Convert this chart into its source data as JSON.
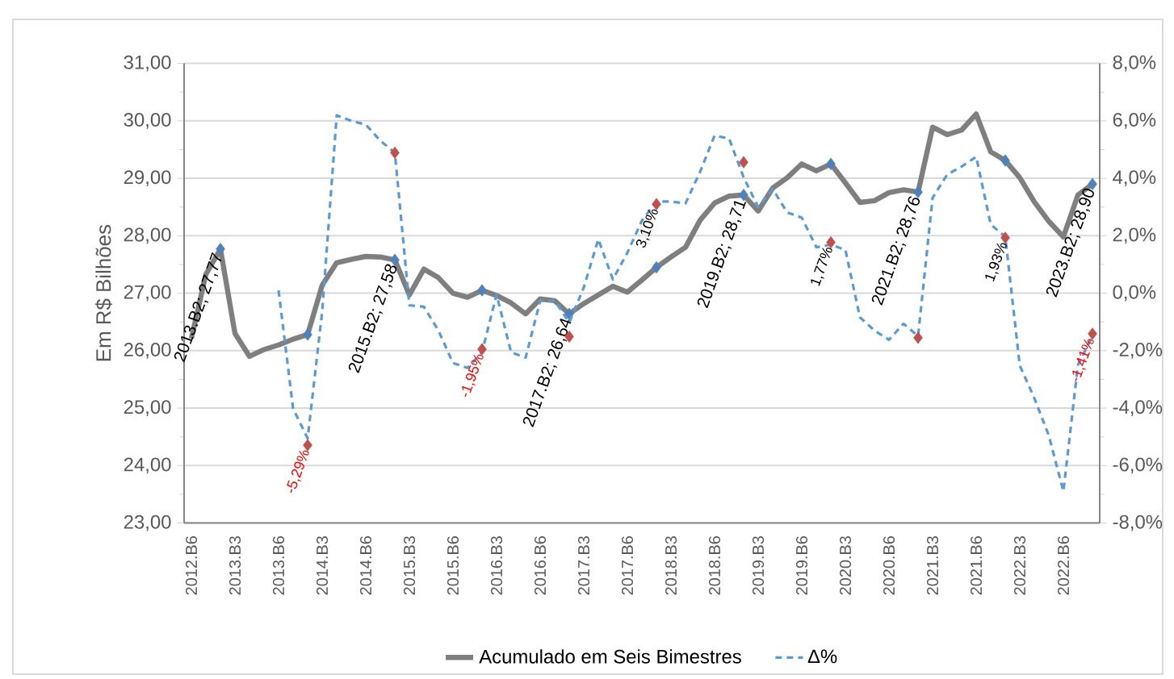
{
  "chart_data": {
    "type": "line",
    "ylabel": "Em R$ Bilhões",
    "categories": [
      "2012.B6",
      null,
      null,
      "2013.B3",
      null,
      null,
      "2013.B6",
      null,
      null,
      "2014.B3",
      null,
      null,
      "2014.B6",
      null,
      null,
      "2015.B3",
      null,
      null,
      "2015.B6",
      null,
      null,
      "2016.B3",
      null,
      null,
      "2016.B6",
      null,
      null,
      "2017.B3",
      null,
      null,
      "2017.B6",
      null,
      null,
      "2018.B3",
      null,
      null,
      "2018.B6",
      null,
      null,
      "2019.B3",
      null,
      null,
      "2019.B6",
      null,
      null,
      "2020.B3",
      null,
      null,
      "2020.B6",
      null,
      null,
      "2021.B3",
      null,
      null,
      "2021.B6",
      null,
      null,
      "2022.B3",
      null,
      null,
      "2022.B6",
      null,
      null
    ],
    "series": [
      {
        "name": "Acumulado em Seis Bimestres",
        "color": "#7f7f7f",
        "values": [
          26.21,
          27.33,
          27.77,
          26.3,
          25.9,
          26.02,
          26.1,
          26.2,
          26.28,
          27.14,
          27.53,
          27.59,
          27.64,
          27.63,
          27.58,
          26.97,
          27.42,
          27.27,
          27.0,
          26.93,
          27.05,
          26.96,
          26.83,
          26.64,
          26.9,
          26.87,
          26.64,
          26.82,
          26.97,
          27.12,
          27.02,
          27.23,
          27.45,
          27.63,
          27.8,
          28.27,
          28.57,
          28.69,
          28.71,
          28.43,
          28.83,
          29.01,
          29.25,
          29.13,
          29.25,
          28.92,
          28.58,
          28.61,
          28.75,
          28.8,
          28.76,
          29.89,
          29.76,
          29.84,
          30.12,
          29.46,
          29.31,
          29.01,
          28.59,
          28.25,
          27.98,
          28.71,
          28.9
        ]
      },
      {
        "name": "Δ%",
        "color": "#5b9bd5",
        "axis": "y2",
        "line_style": "dashed",
        "values": [
          null,
          null,
          null,
          null,
          null,
          null,
          0.1,
          -4.02,
          -5.05,
          -0.65,
          6.19,
          6.0,
          5.87,
          5.31,
          4.89,
          -0.42,
          -0.47,
          -1.3,
          -2.43,
          -2.6,
          -2.05,
          -0.05,
          -2.06,
          -2.24,
          -0.27,
          -0.25,
          -1.02,
          0.2,
          1.88,
          0.48,
          1.41,
          2.53,
          3.19,
          3.19,
          3.13,
          4.22,
          5.49,
          5.38,
          4.03,
          3.0,
          3.62,
          2.81,
          2.63,
          1.6,
          1.69,
          1.51,
          -0.84,
          -1.3,
          -1.62,
          -1.06,
          -1.49,
          3.32,
          4.13,
          4.41,
          4.75,
          2.39,
          1.97,
          -2.52,
          -3.65,
          -4.96,
          -6.9,
          -2.5,
          -1.49
        ]
      },
      {
        "type": "scatter",
        "color": "#4f81bd",
        "marker": "diamond",
        "values": [
          null,
          null,
          27.77,
          null,
          null,
          null,
          null,
          null,
          26.28,
          null,
          null,
          null,
          null,
          null,
          27.58,
          null,
          null,
          null,
          null,
          null,
          27.05,
          null,
          null,
          null,
          null,
          null,
          26.64,
          null,
          null,
          null,
          null,
          null,
          27.45,
          null,
          null,
          null,
          null,
          null,
          28.71,
          null,
          null,
          null,
          null,
          null,
          29.25,
          null,
          null,
          null,
          null,
          null,
          28.76,
          null,
          null,
          null,
          null,
          null,
          29.31,
          null,
          null,
          null,
          null,
          null,
          28.9
        ],
        "value_labels": [
          null,
          null,
          "2013.B2; 27,77",
          null,
          null,
          null,
          null,
          null,
          null,
          null,
          null,
          null,
          null,
          null,
          "2015.B2; 27,58",
          null,
          null,
          null,
          null,
          null,
          null,
          null,
          null,
          null,
          null,
          null,
          "2017.B2; 26,64",
          null,
          null,
          null,
          null,
          null,
          null,
          null,
          null,
          null,
          null,
          null,
          "2019.B2; 28,71",
          null,
          null,
          null,
          null,
          null,
          null,
          null,
          null,
          null,
          null,
          null,
          "2021.B2; 28,76",
          null,
          null,
          null,
          null,
          null,
          null,
          null,
          null,
          null,
          null,
          null,
          "2023.B2; 28,90"
        ]
      },
      {
        "type": "scatter",
        "color": "#c0504d",
        "marker": "diamond",
        "axis": "y2",
        "values": [
          null,
          null,
          null,
          null,
          null,
          null,
          null,
          null,
          -5.29,
          null,
          null,
          null,
          null,
          null,
          4.89,
          null,
          null,
          null,
          null,
          null,
          -1.95,
          null,
          null,
          null,
          null,
          null,
          -1.51,
          null,
          null,
          null,
          null,
          null,
          3.1,
          null,
          null,
          null,
          null,
          null,
          4.56,
          null,
          null,
          null,
          null,
          null,
          1.77,
          null,
          null,
          null,
          null,
          null,
          -1.55,
          null,
          null,
          null,
          null,
          null,
          1.93,
          null,
          null,
          null,
          null,
          null,
          -1.41
        ],
        "value_labels": [
          null,
          null,
          null,
          null,
          null,
          null,
          null,
          null,
          "-5,29%",
          null,
          null,
          null,
          null,
          null,
          null,
          null,
          null,
          null,
          null,
          null,
          "-1,95%",
          null,
          null,
          null,
          null,
          null,
          null,
          null,
          null,
          null,
          null,
          null,
          "3,10%",
          null,
          null,
          null,
          null,
          null,
          null,
          null,
          null,
          null,
          null,
          null,
          "1,77%",
          null,
          null,
          null,
          null,
          null,
          null,
          null,
          null,
          null,
          null,
          null,
          "1,93%",
          null,
          null,
          null,
          null,
          null,
          "-1,41%"
        ]
      }
    ],
    "ylim": [
      23,
      31
    ],
    "yticks": [
      {
        "value": 23,
        "label": "23,00"
      },
      {
        "value": 24,
        "label": "24,00"
      },
      {
        "value": 25,
        "label": "25,00"
      },
      {
        "value": 26,
        "label": "26,00"
      },
      {
        "value": 27,
        "label": "27,00"
      },
      {
        "value": 28,
        "label": "28,00"
      },
      {
        "value": 29,
        "label": "29,00"
      },
      {
        "value": 30,
        "label": "30,00"
      },
      {
        "value": 31,
        "label": "31,00"
      }
    ],
    "y2lim": [
      -8,
      8
    ],
    "y2ticks": [
      {
        "value": -8,
        "label": "-8,0%"
      },
      {
        "value": -6,
        "label": "-6,0%"
      },
      {
        "value": -4,
        "label": "-4,0%"
      },
      {
        "value": -2,
        "label": "-2,0%"
      },
      {
        "value": 0,
        "label": "0,0%"
      },
      {
        "value": 2,
        "label": "2,0%"
      },
      {
        "value": 4,
        "label": "4,0%"
      },
      {
        "value": 6,
        "label": "6,0%"
      },
      {
        "value": 8,
        "label": "8,0%"
      }
    ],
    "grid": "y",
    "legend": "bottom"
  }
}
